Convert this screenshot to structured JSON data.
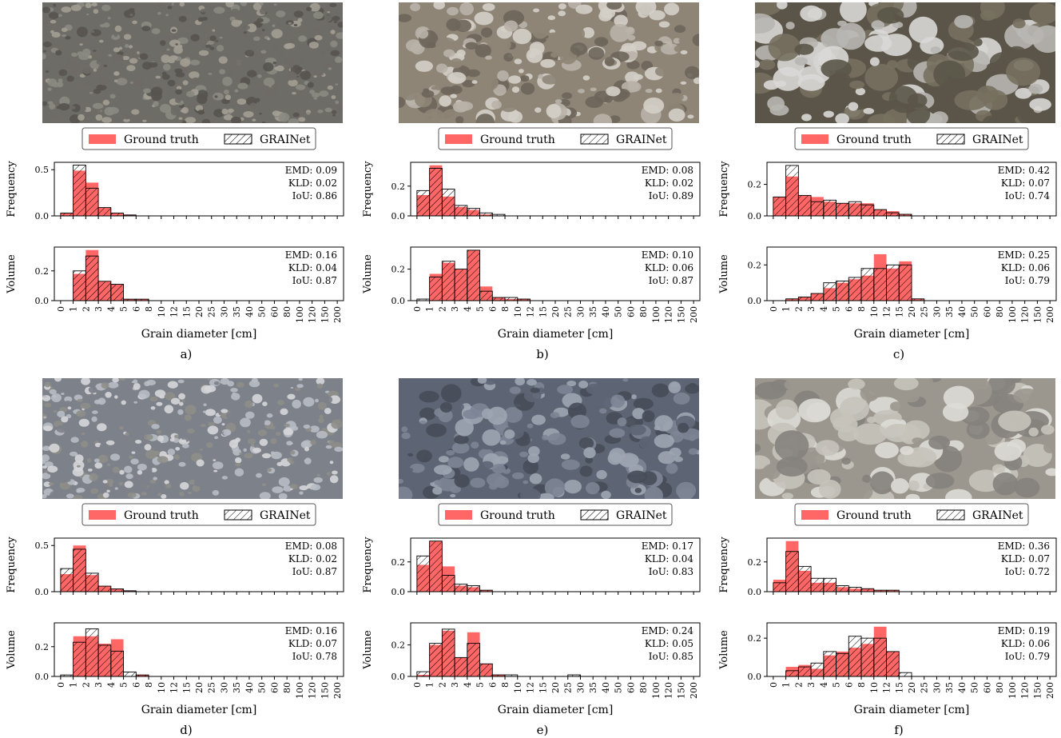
{
  "legend": {
    "ground_truth": "Ground truth",
    "grainet": "GRAINet"
  },
  "colors": {
    "ground_truth": "#ff6666",
    "grainet_edge": "#000000",
    "panel_edge": "#000000"
  },
  "chart_data": [
    {
      "id": "a",
      "type": "bar",
      "caption": "a)",
      "xlabel": "Grain diameter [cm]",
      "bins": [
        "0",
        "1",
        "2",
        "3",
        "4",
        "5",
        "6",
        "8",
        "10",
        "12",
        "15",
        "20",
        "25",
        "30",
        "35",
        "40",
        "50",
        "60",
        "80",
        "100",
        "120",
        "150",
        "200"
      ],
      "photo": {
        "colors": [
          "#8a8a82",
          "#6e6c66",
          "#a39f93",
          "#57544f"
        ]
      },
      "frequency": {
        "ylabel": "Frequency",
        "ylim": [
          0,
          0.58
        ],
        "yticks": [
          "0.0",
          "0.5"
        ],
        "ytick_values": [
          0,
          0.5
        ],
        "ground_truth": [
          0.03,
          0.49,
          0.36,
          0.09,
          0.03,
          0.01,
          0,
          0,
          0,
          0,
          0,
          0,
          0,
          0,
          0,
          0,
          0,
          0,
          0,
          0,
          0,
          0
        ],
        "grainet": [
          0.03,
          0.55,
          0.3,
          0.09,
          0.03,
          0.01,
          0,
          0,
          0,
          0,
          0,
          0,
          0,
          0,
          0,
          0,
          0,
          0,
          0,
          0,
          0,
          0
        ],
        "metrics": [
          "EMD: 0.09",
          "KLD: 0.02",
          "IoU: 0.86"
        ]
      },
      "volume": {
        "ylabel": "Volume",
        "ylim": [
          0,
          0.36
        ],
        "yticks": [
          "0.0",
          "0.2"
        ],
        "ytick_values": [
          0,
          0.2
        ],
        "ground_truth": [
          0,
          0.18,
          0.34,
          0.13,
          0.11,
          0.01,
          0.01,
          0,
          0,
          0,
          0,
          0,
          0,
          0,
          0,
          0,
          0,
          0,
          0,
          0,
          0,
          0
        ],
        "grainet": [
          0,
          0.2,
          0.3,
          0.13,
          0.11,
          0.01,
          0.01,
          0,
          0,
          0,
          0,
          0,
          0,
          0,
          0,
          0,
          0,
          0,
          0,
          0,
          0,
          0
        ],
        "metrics": [
          "EMD: 0.16",
          "KLD: 0.04",
          "IoU: 0.87"
        ]
      }
    },
    {
      "id": "b",
      "type": "bar",
      "caption": "b)",
      "xlabel": "Grain diameter [cm]",
      "bins": [
        "0",
        "1",
        "2",
        "3",
        "4",
        "5",
        "6",
        "8",
        "10",
        "12",
        "15",
        "20",
        "25",
        "30",
        "35",
        "40",
        "50",
        "60",
        "80",
        "100",
        "120",
        "150",
        "200"
      ],
      "photo": {
        "colors": [
          "#b9b2a8",
          "#8e8577",
          "#d4cfc8",
          "#6d6559"
        ]
      },
      "frequency": {
        "ylabel": "Frequency",
        "ylim": [
          0,
          0.36
        ],
        "yticks": [
          "0.0",
          "0.2"
        ],
        "ytick_values": [
          0,
          0.2
        ],
        "ground_truth": [
          0.14,
          0.34,
          0.13,
          0.06,
          0.04,
          0.01,
          0,
          0,
          0,
          0,
          0,
          0,
          0,
          0,
          0,
          0,
          0,
          0,
          0,
          0,
          0,
          0
        ],
        "grainet": [
          0.17,
          0.32,
          0.18,
          0.07,
          0.05,
          0.02,
          0.01,
          0,
          0,
          0,
          0,
          0,
          0,
          0,
          0,
          0,
          0,
          0,
          0,
          0,
          0,
          0
        ],
        "metrics": [
          "EMD: 0.08",
          "KLD: 0.02",
          "IoU: 0.89"
        ]
      },
      "volume": {
        "ylabel": "Volume",
        "ylim": [
          0,
          0.34
        ],
        "yticks": [
          "0.0",
          "0.2"
        ],
        "ytick_values": [
          0,
          0.2
        ],
        "ground_truth": [
          0,
          0.17,
          0.24,
          0.2,
          0.32,
          0.09,
          0.02,
          0.01,
          0.01,
          0,
          0,
          0,
          0,
          0,
          0,
          0,
          0,
          0,
          0,
          0,
          0,
          0
        ],
        "grainet": [
          0.01,
          0.15,
          0.25,
          0.2,
          0.32,
          0.06,
          0.02,
          0.02,
          0.01,
          0,
          0,
          0,
          0,
          0,
          0,
          0,
          0,
          0,
          0,
          0,
          0,
          0
        ],
        "metrics": [
          "EMD: 0.10",
          "KLD: 0.06",
          "IoU: 0.87"
        ]
      }
    },
    {
      "id": "c",
      "type": "bar",
      "caption": "c)",
      "xlabel": "Grain diameter [cm]",
      "bins": [
        "0",
        "1",
        "2",
        "3",
        "4",
        "5",
        "6",
        "8",
        "10",
        "12",
        "15",
        "20",
        "25",
        "30",
        "35",
        "40",
        "50",
        "60",
        "80",
        "100",
        "120",
        "150",
        "200"
      ],
      "photo": {
        "colors": [
          "#d9d8d6",
          "#5a5548",
          "#b8b6b1",
          "#77705f"
        ]
      },
      "frequency": {
        "ylabel": "Frequency",
        "ylim": [
          0,
          0.34
        ],
        "yticks": [
          "0.0",
          "0.2"
        ],
        "ytick_values": [
          0,
          0.2
        ],
        "ground_truth": [
          0.12,
          0.25,
          0.13,
          0.12,
          0.09,
          0.08,
          0.08,
          0.08,
          0.04,
          0.03,
          0.01,
          0,
          0,
          0,
          0,
          0,
          0,
          0,
          0,
          0,
          0,
          0
        ],
        "grainet": [
          0.12,
          0.32,
          0.13,
          0.09,
          0.1,
          0.08,
          0.09,
          0.07,
          0.04,
          0.02,
          0.01,
          0,
          0,
          0,
          0,
          0,
          0,
          0,
          0,
          0,
          0,
          0
        ],
        "metrics": [
          "EMD: 0.42",
          "KLD: 0.07",
          "IoU: 0.74"
        ]
      },
      "volume": {
        "ylabel": "Volume",
        "ylim": [
          0,
          0.3
        ],
        "yticks": [
          "0.0",
          "0.2"
        ],
        "ytick_values": [
          0,
          0.2
        ],
        "ground_truth": [
          0,
          0.01,
          0.02,
          0.04,
          0.07,
          0.1,
          0.12,
          0.14,
          0.26,
          0.18,
          0.22,
          0.01,
          0,
          0,
          0,
          0,
          0,
          0,
          0,
          0,
          0,
          0
        ],
        "grainet": [
          0,
          0.01,
          0.02,
          0.04,
          0.1,
          0.11,
          0.13,
          0.18,
          0.18,
          0.2,
          0.2,
          0.01,
          0,
          0,
          0,
          0,
          0,
          0,
          0,
          0,
          0,
          0
        ],
        "metrics": [
          "EMD: 0.25",
          "KLD: 0.06",
          "IoU: 0.79"
        ]
      }
    },
    {
      "id": "d",
      "type": "bar",
      "caption": "d)",
      "xlabel": "Grain diameter [cm]",
      "bins": [
        "0",
        "1",
        "2",
        "3",
        "4",
        "5",
        "6",
        "8",
        "10",
        "12",
        "15",
        "20",
        "25",
        "30",
        "35",
        "40",
        "50",
        "60",
        "80",
        "100",
        "120",
        "150",
        "200"
      ],
      "photo": {
        "colors": [
          "#b8bcc4",
          "#7d818a",
          "#d6d6d9",
          "#8e8e88"
        ]
      },
      "frequency": {
        "ylabel": "Frequency",
        "ylim": [
          0,
          0.58
        ],
        "yticks": [
          "0.0",
          "0.5"
        ],
        "ytick_values": [
          0,
          0.5
        ],
        "ground_truth": [
          0.19,
          0.5,
          0.18,
          0.06,
          0.03,
          0.01,
          0,
          0,
          0,
          0,
          0,
          0,
          0,
          0,
          0,
          0,
          0,
          0,
          0,
          0,
          0,
          0
        ],
        "grainet": [
          0.25,
          0.46,
          0.2,
          0.06,
          0.03,
          0.01,
          0,
          0,
          0,
          0,
          0,
          0,
          0,
          0,
          0,
          0,
          0,
          0,
          0,
          0,
          0,
          0
        ],
        "metrics": [
          "EMD: 0.08",
          "KLD: 0.02",
          "IoU: 0.87"
        ]
      },
      "volume": {
        "ylabel": "Volume",
        "ylim": [
          0,
          0.36
        ],
        "yticks": [
          "0.0",
          "0.2"
        ],
        "ytick_values": [
          0,
          0.2
        ],
        "ground_truth": [
          0,
          0.27,
          0.27,
          0.22,
          0.25,
          0,
          0.01,
          0,
          0,
          0,
          0,
          0,
          0,
          0,
          0,
          0,
          0,
          0,
          0,
          0,
          0,
          0
        ],
        "grainet": [
          0.01,
          0.23,
          0.32,
          0.21,
          0.17,
          0.03,
          0.01,
          0,
          0,
          0,
          0,
          0,
          0,
          0,
          0,
          0,
          0,
          0,
          0,
          0,
          0,
          0
        ],
        "metrics": [
          "EMD: 0.16",
          "KLD: 0.07",
          "IoU: 0.78"
        ]
      }
    },
    {
      "id": "e",
      "type": "bar",
      "caption": "e)",
      "xlabel": "Grain diameter [cm]",
      "bins": [
        "0",
        "1",
        "2",
        "3",
        "4",
        "5",
        "6",
        "8",
        "10",
        "12",
        "15",
        "20",
        "25",
        "30",
        "35",
        "40",
        "50",
        "60",
        "80",
        "100",
        "120",
        "150",
        "200"
      ],
      "photo": {
        "colors": [
          "#7d8596",
          "#5d6473",
          "#9ea5b3",
          "#464c59"
        ]
      },
      "frequency": {
        "ylabel": "Frequency",
        "ylim": [
          0,
          0.36
        ],
        "yticks": [
          "0.0",
          "0.2"
        ],
        "ytick_values": [
          0,
          0.2
        ],
        "ground_truth": [
          0.18,
          0.34,
          0.17,
          0.04,
          0.03,
          0.01,
          0,
          0,
          0,
          0,
          0,
          0,
          0,
          0,
          0,
          0,
          0,
          0,
          0,
          0,
          0,
          0
        ],
        "grainet": [
          0.24,
          0.34,
          0.11,
          0.05,
          0.04,
          0.01,
          0,
          0,
          0,
          0,
          0,
          0,
          0,
          0,
          0,
          0,
          0,
          0,
          0,
          0,
          0,
          0
        ],
        "metrics": [
          "EMD: 0.17",
          "KLD: 0.04",
          "IoU: 0.83"
        ]
      },
      "volume": {
        "ylabel": "Volume",
        "ylim": [
          0,
          0.34
        ],
        "yticks": [
          "0.0",
          "0.2"
        ],
        "ytick_values": [
          0,
          0.2
        ],
        "ground_truth": [
          0.01,
          0.2,
          0.29,
          0.12,
          0.28,
          0.08,
          0.01,
          0,
          0,
          0,
          0,
          0,
          0,
          0,
          0,
          0,
          0,
          0,
          0,
          0,
          0,
          0
        ],
        "grainet": [
          0.03,
          0.21,
          0.3,
          0.12,
          0.21,
          0.08,
          0.01,
          0.01,
          0,
          0,
          0,
          0,
          0.01,
          0,
          0,
          0,
          0,
          0,
          0,
          0,
          0,
          0
        ],
        "metrics": [
          "EMD: 0.24",
          "KLD: 0.05",
          "IoU: 0.85"
        ]
      }
    },
    {
      "id": "f",
      "type": "bar",
      "caption": "f)",
      "xlabel": "Grain diameter [cm]",
      "bins": [
        "0",
        "1",
        "2",
        "3",
        "4",
        "5",
        "6",
        "8",
        "10",
        "12",
        "15",
        "20",
        "25",
        "30",
        "35",
        "40",
        "50",
        "60",
        "80",
        "100",
        "120",
        "150",
        "200"
      ],
      "photo": {
        "colors": [
          "#c7c3bb",
          "#9b978e",
          "#dedbd6",
          "#85827d"
        ]
      },
      "frequency": {
        "ylabel": "Frequency",
        "ylim": [
          0,
          0.36
        ],
        "yticks": [
          "0.0",
          "0.2"
        ],
        "ytick_values": [
          0,
          0.2
        ],
        "ground_truth": [
          0.08,
          0.34,
          0.14,
          0.06,
          0.06,
          0.03,
          0.02,
          0.02,
          0.01,
          0.01,
          0,
          0,
          0,
          0,
          0,
          0,
          0,
          0,
          0,
          0,
          0,
          0
        ],
        "grainet": [
          0.06,
          0.27,
          0.17,
          0.09,
          0.09,
          0.04,
          0.03,
          0.02,
          0.01,
          0.01,
          0,
          0,
          0,
          0,
          0,
          0,
          0,
          0,
          0,
          0,
          0,
          0
        ],
        "metrics": [
          "EMD: 0.36",
          "KLD: 0.07",
          "IoU: 0.72"
        ]
      },
      "volume": {
        "ylabel": "Volume",
        "ylim": [
          0,
          0.28
        ],
        "yticks": [
          "0.0",
          "0.2"
        ],
        "ytick_values": [
          0,
          0.2
        ],
        "ground_truth": [
          0,
          0.05,
          0.06,
          0.04,
          0.11,
          0.13,
          0.15,
          0.17,
          0.26,
          0.13,
          0,
          0,
          0,
          0,
          0,
          0,
          0,
          0,
          0,
          0,
          0,
          0
        ],
        "grainet": [
          0,
          0.03,
          0.05,
          0.07,
          0.13,
          0.12,
          0.21,
          0.2,
          0.2,
          0.13,
          0.02,
          0,
          0,
          0,
          0,
          0,
          0,
          0,
          0,
          0,
          0,
          0
        ],
        "metrics": [
          "EMD: 0.19",
          "KLD: 0.06",
          "IoU: 0.79"
        ]
      }
    }
  ]
}
